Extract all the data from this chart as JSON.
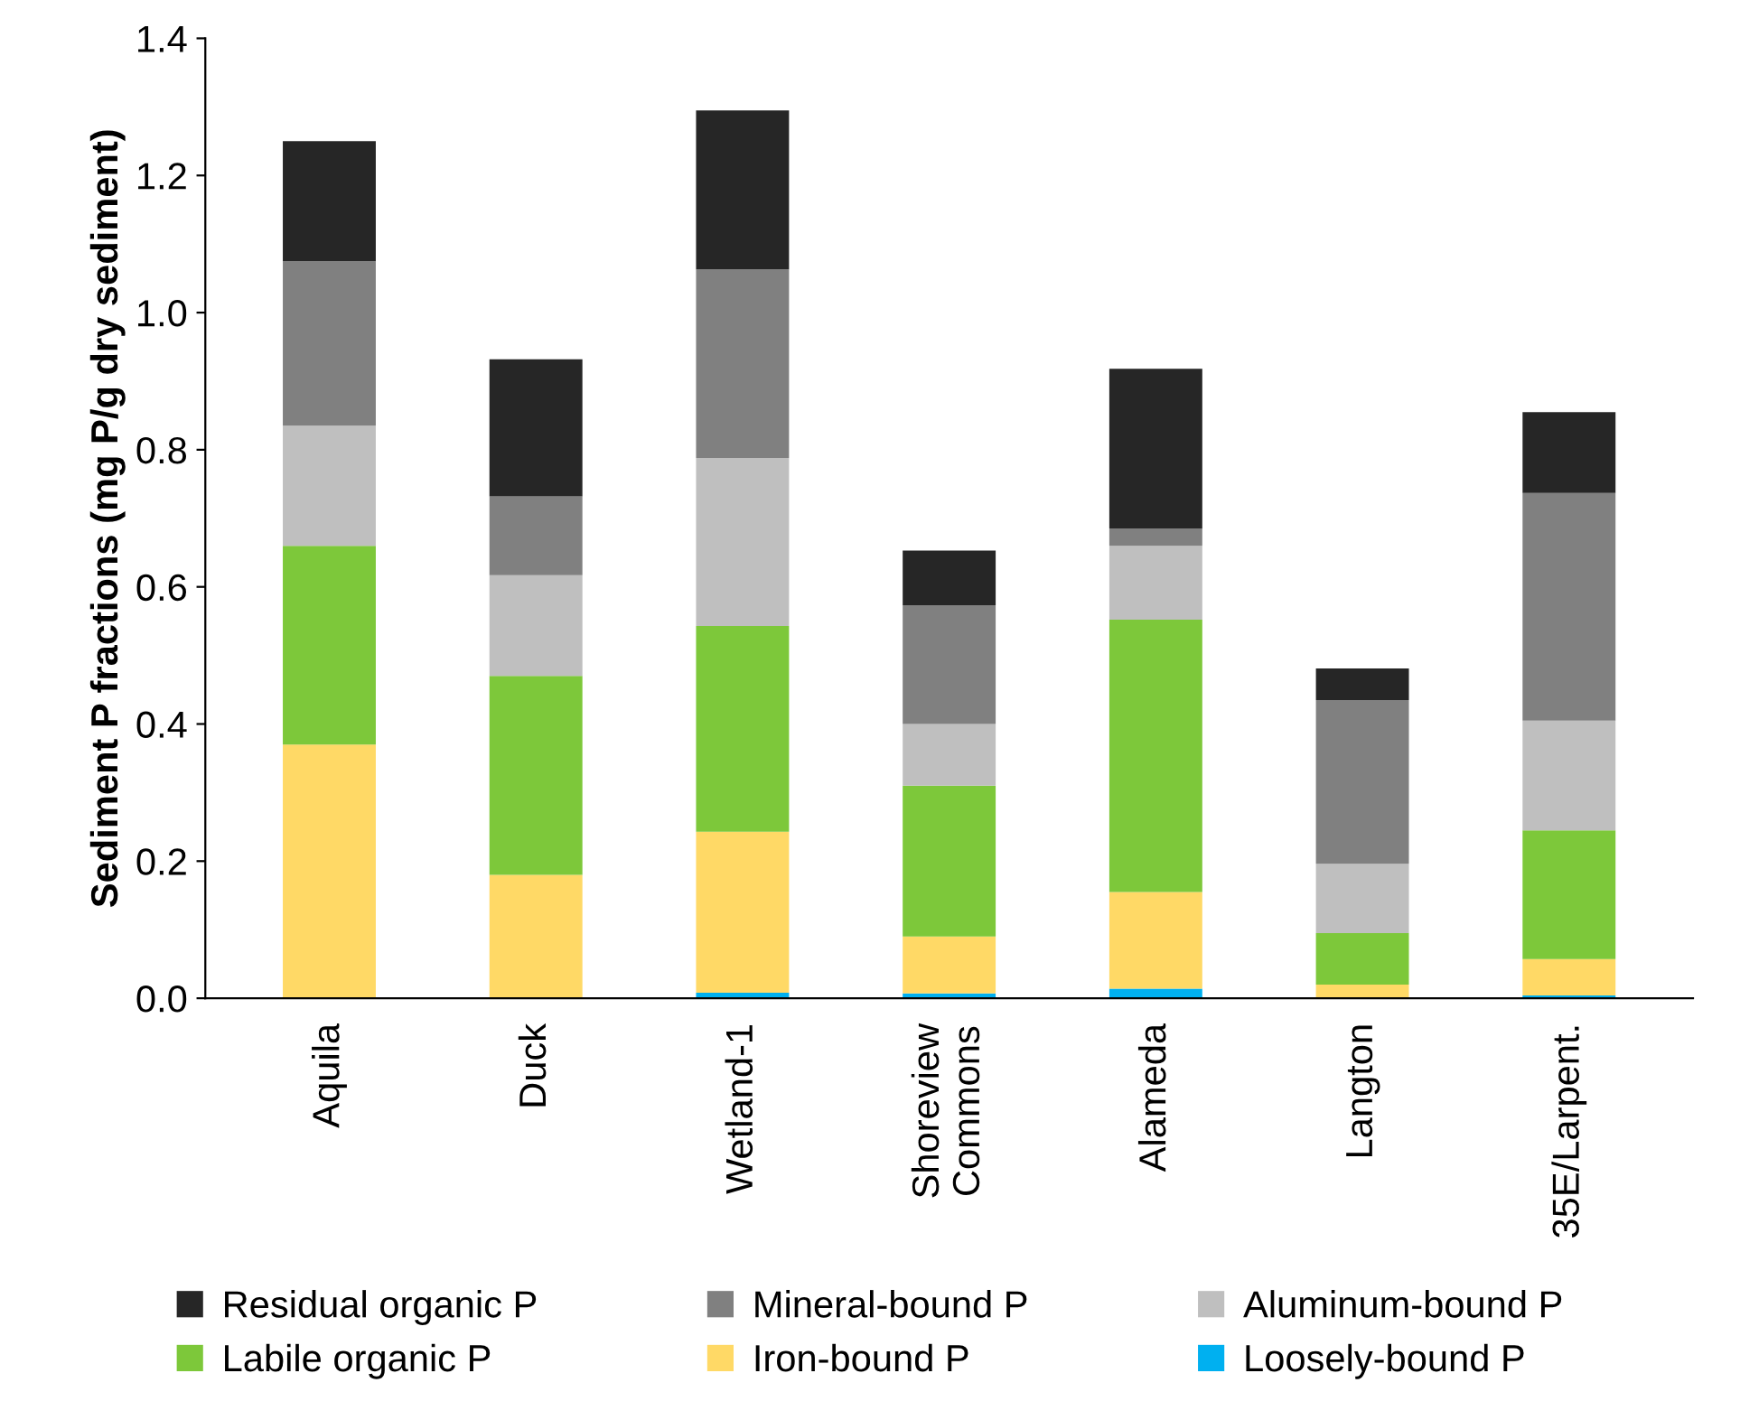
{
  "chart_data": {
    "type": "bar",
    "stacked": true,
    "ylabel": "Sediment P fractions (mg P/g dry sediment)",
    "categories": [
      "Aquila",
      "Duck",
      "Wetland-1",
      "Shoreview\nCommons",
      "Alameda",
      "Langton",
      "35E/Larpent."
    ],
    "series": [
      {
        "name": "Loosely-bound P",
        "color": "#00b0f0",
        "values": [
          null,
          null,
          0.008,
          0.007,
          0.014,
          null,
          0.004
        ]
      },
      {
        "name": "Iron-bound P",
        "color": "#ffd966",
        "values": [
          0.37,
          0.18,
          0.235,
          0.083,
          0.141,
          0.02,
          0.053
        ]
      },
      {
        "name": "Labile organic P",
        "color": "#7dc83a",
        "values": [
          0.29,
          0.29,
          0.3,
          0.22,
          0.397,
          0.075,
          0.188
        ]
      },
      {
        "name": "Aluminum-bound P",
        "color": "#bfbfbf",
        "values": [
          0.175,
          0.147,
          0.245,
          0.09,
          0.108,
          0.101,
          0.16
        ]
      },
      {
        "name": "Mineral-bound P",
        "color": "#808080",
        "values": [
          0.24,
          0.115,
          0.275,
          0.173,
          0.025,
          0.239,
          0.332
        ]
      },
      {
        "name": "Residual organic P",
        "color": "#262626",
        "values": [
          0.175,
          0.2,
          0.232,
          0.08,
          0.233,
          0.046,
          0.118
        ]
      }
    ],
    "ylim": [
      0,
      1.4
    ],
    "yticks": [
      {
        "value": 0,
        "label": "0.0"
      },
      {
        "value": 0.2,
        "label": "0.2"
      },
      {
        "value": 0.4,
        "label": "0.4"
      },
      {
        "value": 0.6,
        "label": "0.6"
      },
      {
        "value": 0.8,
        "label": "0.8"
      },
      {
        "value": 1,
        "label": "1.0"
      },
      {
        "value": 1.2,
        "label": "1.2"
      },
      {
        "value": 1.4,
        "label": "1.4"
      }
    ],
    "legend": "bottom"
  }
}
